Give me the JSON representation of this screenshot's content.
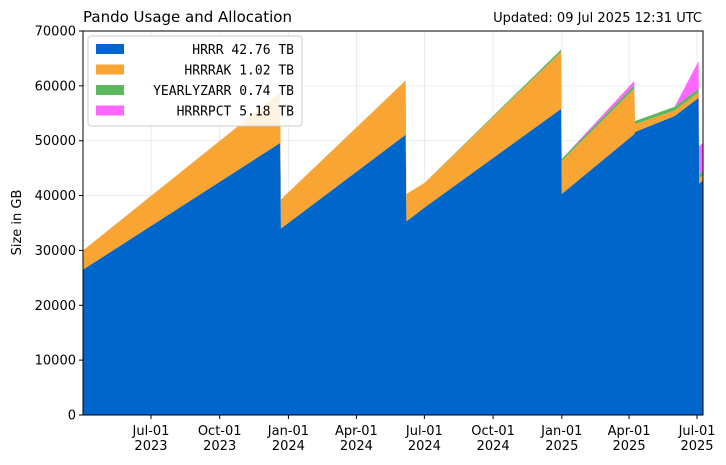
{
  "chart_data": {
    "type": "area",
    "stacked": true,
    "title": "Pando Usage and Allocation",
    "updated": "Updated: 09 Jul 2025 12:31 UTC",
    "ylabel": "Size in GB",
    "xlabel": "",
    "xlim": [
      "2023-04-01",
      "2025-07-09"
    ],
    "ylim": [
      0,
      70000
    ],
    "yticks": [
      0,
      10000,
      20000,
      30000,
      40000,
      50000,
      60000,
      70000
    ],
    "xticks": [
      {
        "date": "2023-07-01",
        "label": [
          "Jul-01",
          "2023"
        ]
      },
      {
        "date": "2023-10-01",
        "label": [
          "Oct-01",
          "2023"
        ]
      },
      {
        "date": "2024-01-01",
        "label": [
          "Jan-01",
          "2024"
        ]
      },
      {
        "date": "2024-04-01",
        "label": [
          "Apr-01",
          "2024"
        ]
      },
      {
        "date": "2024-07-01",
        "label": [
          "Jul-01",
          "2024"
        ]
      },
      {
        "date": "2024-10-01",
        "label": [
          "Oct-01",
          "2024"
        ]
      },
      {
        "date": "2025-01-01",
        "label": [
          "Jan-01",
          "2025"
        ]
      },
      {
        "date": "2025-04-01",
        "label": [
          "Apr-01",
          "2025"
        ]
      },
      {
        "date": "2025-07-01",
        "label": [
          "Jul-01",
          "2025"
        ]
      }
    ],
    "grid": true,
    "legend_position": "top-left",
    "x": [
      "2023-04-01",
      "2023-12-21",
      "2023-12-22",
      "2024-06-06",
      "2024-06-07",
      "2024-07-01",
      "2024-12-31",
      "2025-01-01",
      "2025-04-08",
      "2025-04-09",
      "2025-06-01",
      "2025-07-03",
      "2025-07-04",
      "2025-07-09"
    ],
    "series": [
      {
        "name": "HRRR",
        "legend": "HRRR 42.76 TB",
        "color": "#0066cc",
        "values": [
          26500,
          49600,
          34000,
          51100,
          35300,
          37800,
          55800,
          40300,
          51200,
          51600,
          54500,
          57800,
          42200,
          42760
        ]
      },
      {
        "name": "HRRRAK",
        "legend": "HRRRAK 1.02 TB",
        "color": "#f9a534",
        "values": [
          3500,
          9200,
          5300,
          9900,
          5000,
          4500,
          10400,
          6000,
          8300,
          1400,
          1000,
          1000,
          1000,
          1020
        ]
      },
      {
        "name": "YEARLYZARR",
        "legend": "YEARLYZARR 0.74 TB",
        "color": "#5cb85c",
        "values": [
          0,
          0,
          0,
          0,
          0,
          0,
          400,
          400,
          600,
          600,
          700,
          700,
          740,
          740
        ]
      },
      {
        "name": "HRRRPCT",
        "legend": "HRRRPCT 5.18 TB",
        "color": "#ff66ff",
        "values": [
          0,
          0,
          0,
          0,
          0,
          0,
          0,
          0,
          800,
          0,
          0,
          5000,
          5000,
          5180
        ]
      }
    ]
  }
}
